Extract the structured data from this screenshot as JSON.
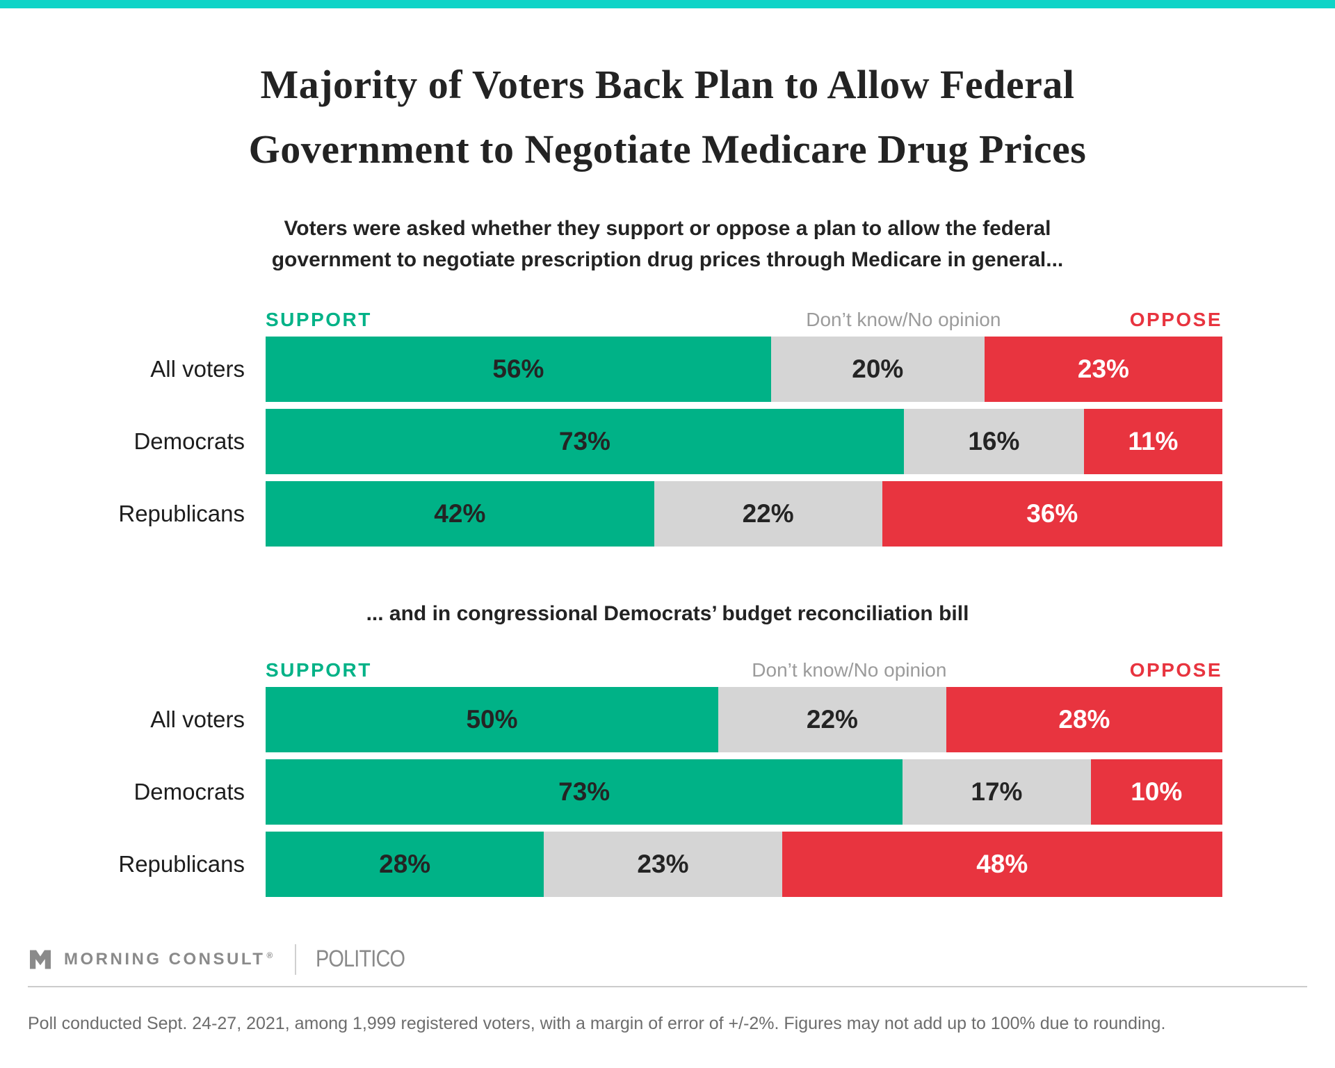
{
  "colors": {
    "accent_teal": "#0fd4c7",
    "support_green": "#00b287",
    "neutral_gray": "#d5d5d5",
    "oppose_red": "#e8343f"
  },
  "title": {
    "line1": "Majority of Voters Back Plan to Allow Federal",
    "line2": "Government to Negotiate Medicare Drug Prices"
  },
  "subtitle": {
    "line1": "Voters were asked whether they support or oppose a plan to allow the federal",
    "line2": "government to negotiate prescription drug prices through Medicare in general..."
  },
  "section2_heading": "... and in congressional Democrats’ budget reconciliation bill",
  "legend": {
    "support": "SUPPORT",
    "dont_know": "Don’t know/No opinion",
    "oppose": "OPPOSE"
  },
  "chart_data": [
    {
      "type": "bar",
      "orientation": "horizontal",
      "stacked": true,
      "unit": "%",
      "xlim": [
        0,
        100
      ],
      "value_labels": "inside",
      "title": "Voters were asked whether they support or oppose a plan to allow the federal government to negotiate prescription drug prices through Medicare in general...",
      "categories": [
        "All voters",
        "Democrats",
        "Republicans"
      ],
      "series": [
        {
          "name": "Support",
          "color": "#00b287",
          "label_color": "#242424",
          "values": [
            56,
            73,
            42
          ]
        },
        {
          "name": "Don’t know/No opinion",
          "color": "#d5d5d5",
          "label_color": "#242424",
          "values": [
            20,
            16,
            22
          ]
        },
        {
          "name": "Oppose",
          "color": "#e8343f",
          "label_color": "#ffffff",
          "values": [
            23,
            11,
            36
          ]
        }
      ]
    },
    {
      "type": "bar",
      "orientation": "horizontal",
      "stacked": true,
      "unit": "%",
      "xlim": [
        0,
        100
      ],
      "value_labels": "inside",
      "title": "... and in congressional Democrats’ budget reconciliation bill",
      "categories": [
        "All voters",
        "Democrats",
        "Republicans"
      ],
      "series": [
        {
          "name": "Support",
          "color": "#00b287",
          "label_color": "#242424",
          "values": [
            50,
            73,
            28
          ]
        },
        {
          "name": "Don’t know/No opinion",
          "color": "#d5d5d5",
          "label_color": "#242424",
          "values": [
            22,
            17,
            23
          ]
        },
        {
          "name": "Oppose",
          "color": "#e8343f",
          "label_color": "#ffffff",
          "values": [
            28,
            10,
            48
          ]
        }
      ]
    }
  ],
  "footer": {
    "brand": "MORNING CONSULT",
    "trademark": "®",
    "partner": "POLITICO",
    "note": "Poll conducted Sept. 24-27, 2021, among 1,999 registered voters, with a margin of error of +/-2%. Figures may not add up to 100% due to rounding."
  }
}
